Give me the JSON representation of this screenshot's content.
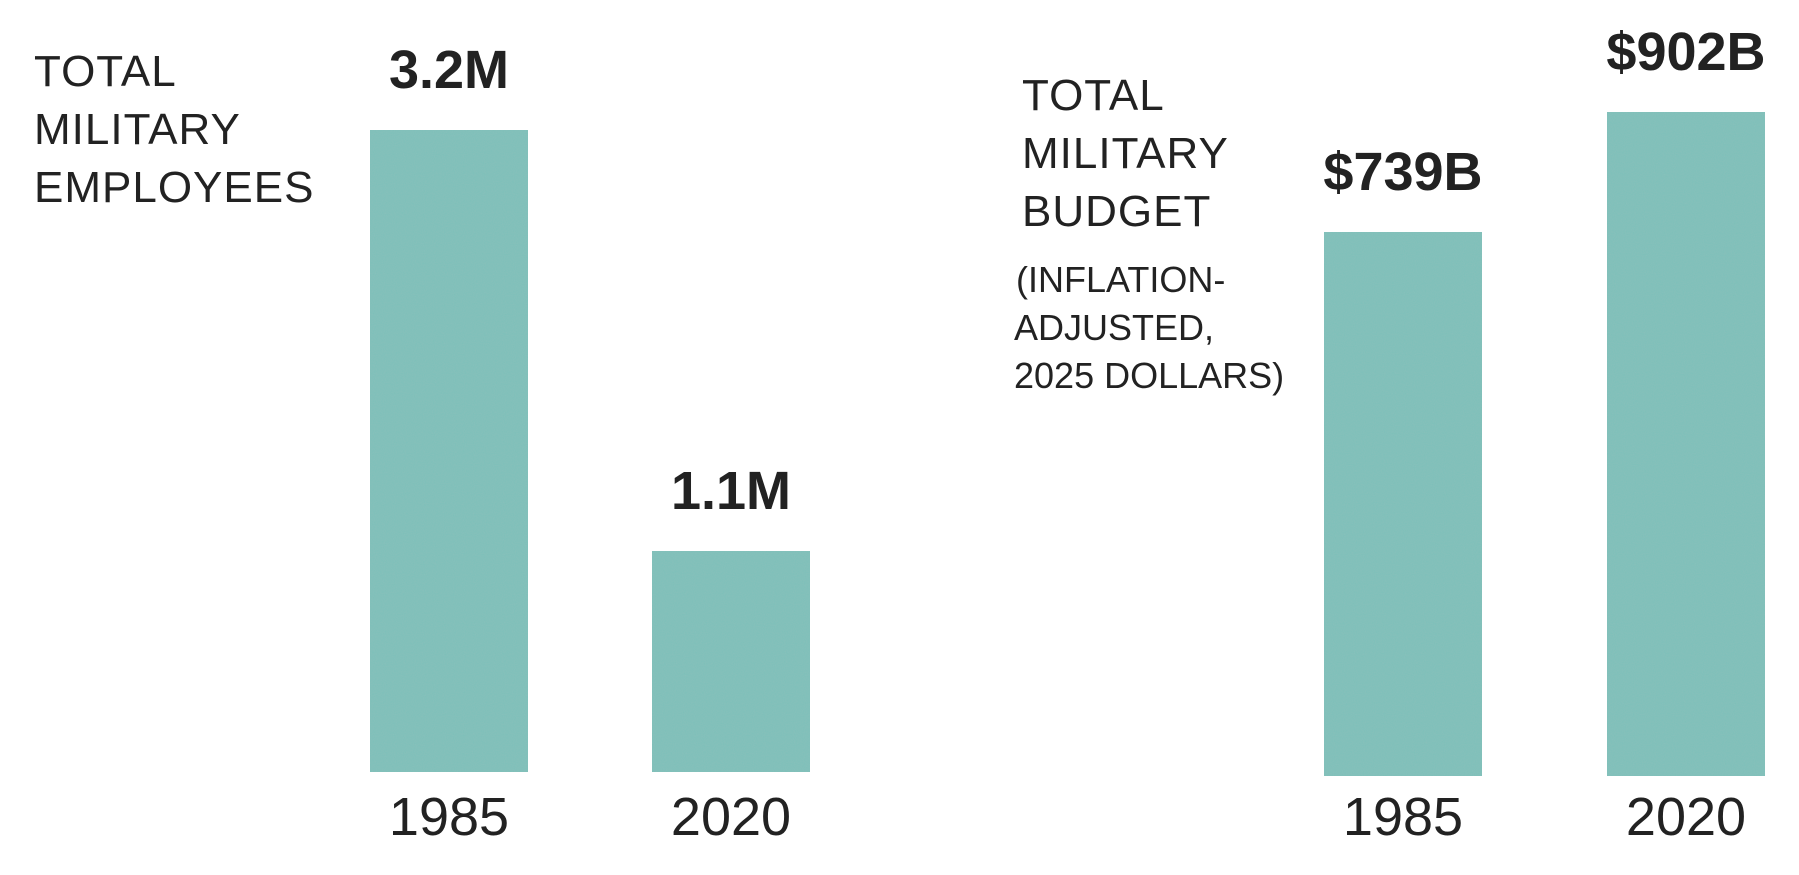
{
  "colors": {
    "bar": "#7cc0b9",
    "bar_dark": "#6fb5ae",
    "text": "#222222",
    "background": "#ffffff"
  },
  "chart_data": [
    {
      "type": "bar",
      "title_lines": [
        "TOTAL",
        "MILITARY",
        "EMPLOYEES"
      ],
      "subtitle_lines": [],
      "categories": [
        "1985",
        "2020"
      ],
      "values": [
        3.2,
        1.1
      ],
      "units": "millions",
      "value_labels": [
        "3.2M",
        "1.1M"
      ],
      "ylim": [
        0,
        3.2
      ],
      "grid": false,
      "legend": "none"
    },
    {
      "type": "bar",
      "title_lines": [
        "TOTAL",
        "MILITARY",
        "BUDGET"
      ],
      "subtitle_lines": [
        "(INFLATION-",
        "ADJUSTED,",
        "2025 DOLLARS)"
      ],
      "categories": [
        "1985",
        "2020"
      ],
      "values": [
        739,
        902
      ],
      "units": "billions of 2025 dollars",
      "value_labels": [
        "$739B",
        "$902B"
      ],
      "ylim": [
        0,
        902
      ],
      "grid": false,
      "legend": "none"
    }
  ]
}
